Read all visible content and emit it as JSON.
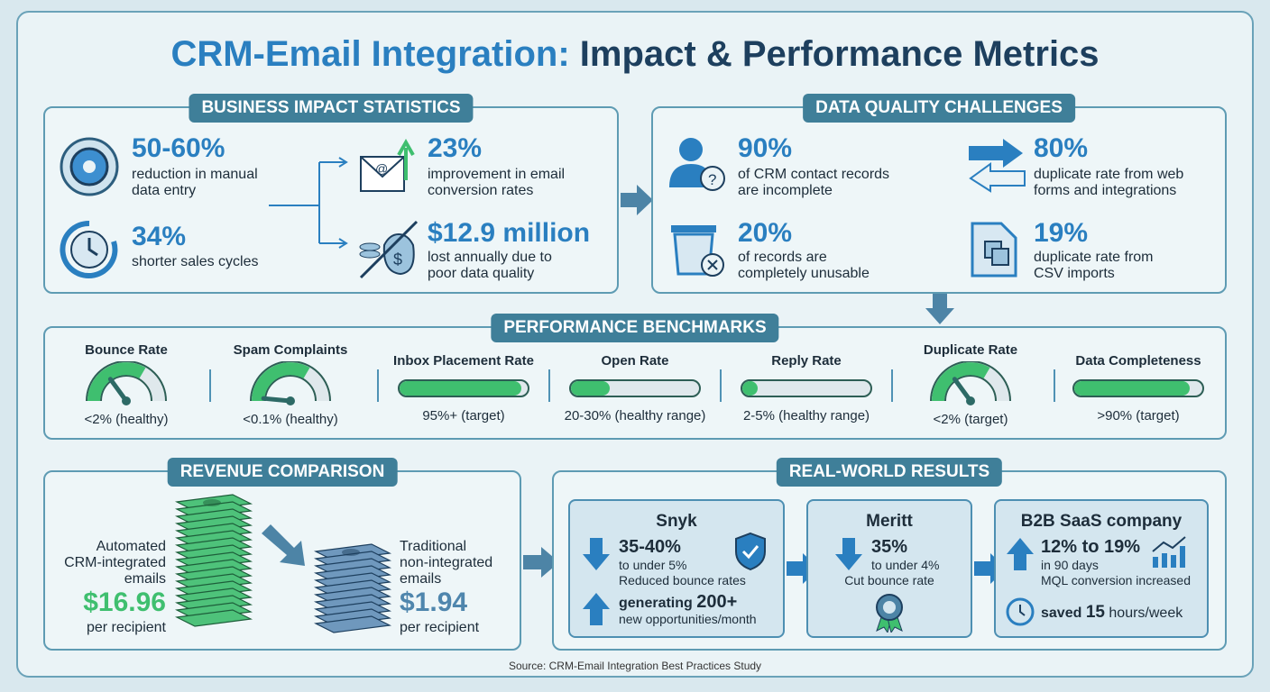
{
  "title": {
    "accent": "CRM-Email Integration:",
    "rest": " Impact & Performance Metrics"
  },
  "business": {
    "tab": "BUSINESS IMPACT STATISTICS",
    "items": [
      {
        "value": "50-60%",
        "desc1": "reduction in manual",
        "desc2": "data entry",
        "icon": "gear-clock-icon"
      },
      {
        "value": "34%",
        "desc1": "shorter sales cycles",
        "desc2": "",
        "icon": "clock-speed-icon"
      },
      {
        "value": "23%",
        "desc1": "improvement in email",
        "desc2": "conversion rates",
        "icon": "email-growth-icon"
      },
      {
        "value": "$12.9 million",
        "desc1": "lost annually due to",
        "desc2": "poor data quality",
        "icon": "money-bag-icon"
      }
    ]
  },
  "quality": {
    "tab": "DATA QUALITY CHALLENGES",
    "items": [
      {
        "value": "90%",
        "desc1": "of CRM contact records",
        "desc2": "are incomplete",
        "icon": "user-question-icon"
      },
      {
        "value": "20%",
        "desc1": "of records are",
        "desc2": "completely unusable",
        "icon": "trash-icon"
      },
      {
        "value": "80%",
        "desc1": "duplicate rate from web",
        "desc2": "forms and integrations",
        "icon": "swap-arrows-icon"
      },
      {
        "value": "19%",
        "desc1": "duplicate rate from",
        "desc2": "CSV imports",
        "icon": "duplicate-files-icon"
      }
    ]
  },
  "benchmarks": {
    "tab": "PERFORMANCE BENCHMARKS",
    "items": [
      {
        "label": "Bounce Rate",
        "value": "<2% (healthy)",
        "type": "gauge",
        "level": 0.3
      },
      {
        "label": "Spam Complaints",
        "value": "<0.1% (healthy)",
        "type": "gauge",
        "level": 0.03
      },
      {
        "label": "Inbox Placement Rate",
        "value": "95%+ (target)",
        "type": "bar",
        "level": 0.95
      },
      {
        "label": "Open Rate",
        "value": "20-30% (healthy range)",
        "type": "bar",
        "level": 0.3
      },
      {
        "label": "Reply Rate",
        "value": "2-5% (healthy range)",
        "type": "bar",
        "level": 0.12
      },
      {
        "label": "Duplicate Rate",
        "value": "<2% (target)",
        "type": "gauge",
        "level": 0.3
      },
      {
        "label": "Data Completeness",
        "value": ">90% (target)",
        "type": "bar",
        "level": 0.9
      }
    ]
  },
  "revenue": {
    "tab": "REVENUE COMPARISON",
    "auto": {
      "l1": "Automated",
      "l2": "CRM-integrated",
      "l3": "emails",
      "value": "$16.96",
      "per": "per recipient"
    },
    "trad": {
      "l1": "Traditional",
      "l2": "non-integrated",
      "l3": "emails",
      "value": "$1.94",
      "per": "per recipient"
    }
  },
  "results": {
    "tab": "REAL-WORLD RESULTS",
    "snyk": {
      "name": "Snyk",
      "v1": "35-40%",
      "d1": "to under 5%",
      "d2": "Reduced bounce rates",
      "g1": "generating ",
      "g2": "200+",
      "g3": "new opportunities/month"
    },
    "meritt": {
      "name": "Meritt",
      "v1": "35%",
      "d1": "to under 4%",
      "d2": "Cut bounce rate"
    },
    "saas": {
      "name": "B2B SaaS company",
      "v1": "12% to 19%",
      "d1": "in 90 days",
      "d2": "MQL conversion increased",
      "s1": "saved ",
      "s2": "15",
      "s3": " hours/week"
    }
  },
  "source": "Source: CRM-Email Integration Best Practices Study",
  "colors": {
    "accent": "#2a7fc0",
    "dark": "#1d3f5e",
    "tab": "#3f7f99",
    "green": "#3fbf6f",
    "grey_value": "#4f86ad"
  }
}
